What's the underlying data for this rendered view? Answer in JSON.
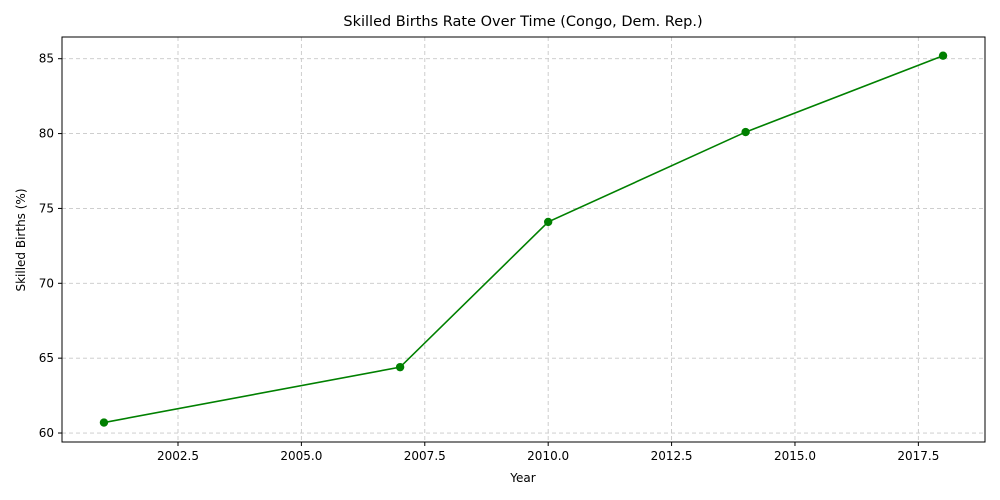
{
  "chart_data": {
    "type": "line",
    "title": "Skilled Births Rate Over Time (Congo, Dem. Rep.)",
    "xlabel": "Year",
    "ylabel": "Skilled Births (%)",
    "xlim": [
      2000.15,
      2018.85
    ],
    "ylim": [
      59.4,
      86.45
    ],
    "x_ticks": [
      2002.5,
      2005.0,
      2007.5,
      2010.0,
      2012.5,
      2015.0,
      2017.5
    ],
    "x_tick_labels": [
      "2002.5",
      "2005.0",
      "2007.5",
      "2010.0",
      "2012.5",
      "2015.0",
      "2017.5"
    ],
    "y_ticks": [
      60,
      65,
      70,
      75,
      80,
      85
    ],
    "y_tick_labels": [
      "60",
      "65",
      "70",
      "75",
      "80",
      "85"
    ],
    "grid": true,
    "series": [
      {
        "color": "#008000",
        "marker": "circle",
        "x": [
          2001,
          2007,
          2010,
          2014,
          2018
        ],
        "y": [
          60.7,
          64.4,
          74.1,
          80.1,
          85.2
        ]
      }
    ]
  }
}
